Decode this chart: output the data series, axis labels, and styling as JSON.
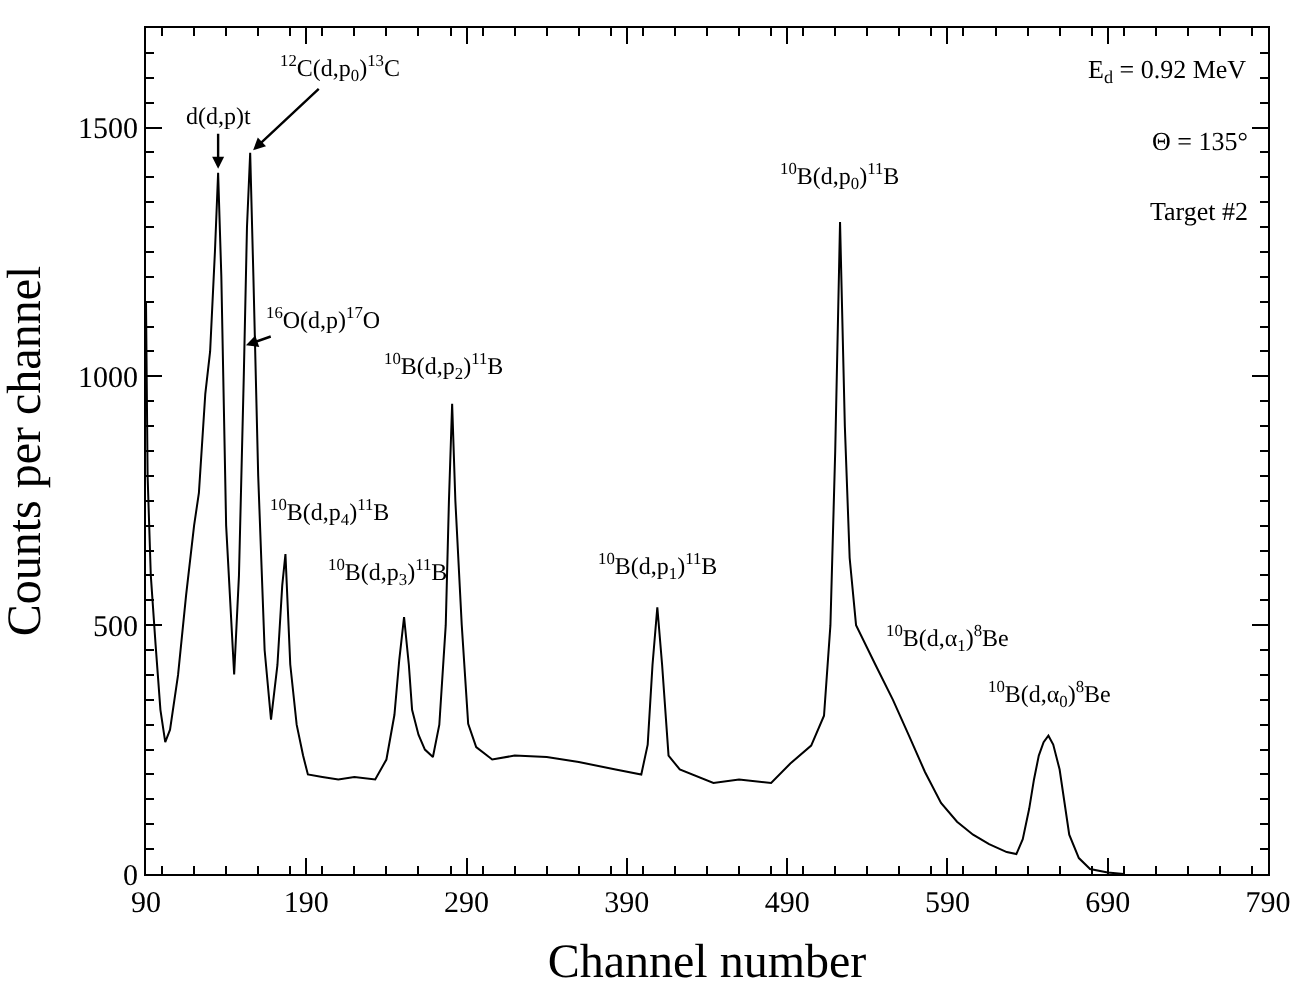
{
  "chart_data": {
    "type": "line",
    "xlabel": "Channel number",
    "ylabel": "Counts per channel",
    "x": [
      90,
      91,
      93,
      96,
      99,
      102,
      105,
      110,
      115,
      120,
      123,
      127,
      130,
      133,
      135,
      137,
      140,
      145,
      148,
      151,
      153,
      155,
      157,
      160,
      164,
      168,
      172,
      175,
      177,
      180,
      184,
      188,
      191,
      200,
      210,
      220,
      233,
      240,
      245,
      248,
      251,
      254,
      256,
      260,
      264,
      269,
      273,
      277,
      279,
      281,
      283,
      287,
      291,
      296,
      306,
      320,
      340,
      360,
      383,
      399,
      403,
      406,
      409,
      412,
      416,
      423,
      444,
      460,
      480,
      492,
      505,
      513,
      517,
      520,
      523,
      526,
      529,
      533,
      545,
      556,
      566,
      576,
      586,
      596,
      606,
      616,
      627,
      633,
      637,
      641,
      644,
      647,
      650,
      653,
      656,
      660,
      666,
      672,
      679,
      690,
      700
    ],
    "series": [
      {
        "color": "#000000",
        "values": [
          1150,
          800,
          600,
          460,
          330,
          265,
          290,
          400,
          560,
          700,
          766,
          965,
          1050,
          1250,
          1409,
          1200,
          700,
          401,
          600,
          1000,
          1300,
          1449,
          1200,
          800,
          450,
          310,
          420,
          580,
          643,
          421,
          300,
          238,
          200,
          195,
          190,
          195,
          190,
          230,
          320,
          430,
          516,
          420,
          330,
          280,
          250,
          235,
          300,
          500,
          750,
          945,
          750,
          500,
          302,
          255,
          230,
          238,
          235,
          225,
          210,
          200,
          260,
          420,
          536,
          420,
          238,
          210,
          183,
          190,
          183,
          222,
          258,
          318,
          500,
          850,
          1310,
          900,
          635,
          500,
          421,
          350,
          278,
          205,
          143,
          105,
          79,
          60,
          44,
          40,
          70,
          131,
          190,
          238,
          265,
          278,
          260,
          210,
          79,
          32,
          10,
          3,
          0
        ]
      }
    ],
    "xlim": [
      90,
      790
    ],
    "ylim": [
      0,
      1700
    ],
    "xticks": [
      90,
      190,
      290,
      390,
      490,
      590,
      690,
      790
    ],
    "yticks": [
      0,
      500,
      1000,
      1500
    ],
    "grid": false,
    "marker": "none",
    "line_style": "solid",
    "annotations": [
      {
        "text": "d(d,p)t",
        "x": 135,
        "y": 1409
      },
      {
        "text": "$^{12}$C(d,p$_{0}$)$^{13}$C",
        "x": 155,
        "y": 1449
      },
      {
        "text": "$^{16}$O(d,p)$^{17}$O",
        "x": 150,
        "y": 1060
      },
      {
        "text": "$^{10}$B(d,p$_{2}$)$^{11}$B",
        "x": 281,
        "y": 945
      },
      {
        "text": "$^{10}$B(d,p$_{4}$)$^{11}$B",
        "x": 177,
        "y": 643
      },
      {
        "text": "$^{10}$B(d,p$_{3}$)$^{11}$B",
        "x": 251,
        "y": 516
      },
      {
        "text": "$^{10}$B(d,p$_{1}$)$^{11}$B",
        "x": 409,
        "y": 536
      },
      {
        "text": "$^{10}$B(d,p$_{0}$)$^{11}$B",
        "x": 523,
        "y": 1310
      },
      {
        "text": "$^{10}$B(d,α$_{1}$)$^{8}$Be",
        "x": 545,
        "y": 421
      },
      {
        "text": "$^{10}$B(d,α$_{0}$)$^{8}$Be",
        "x": 653,
        "y": 278
      },
      "E$_{d}$ = 0.92 MeV",
      "Θ = 135°",
      "Target #2"
    ]
  }
}
